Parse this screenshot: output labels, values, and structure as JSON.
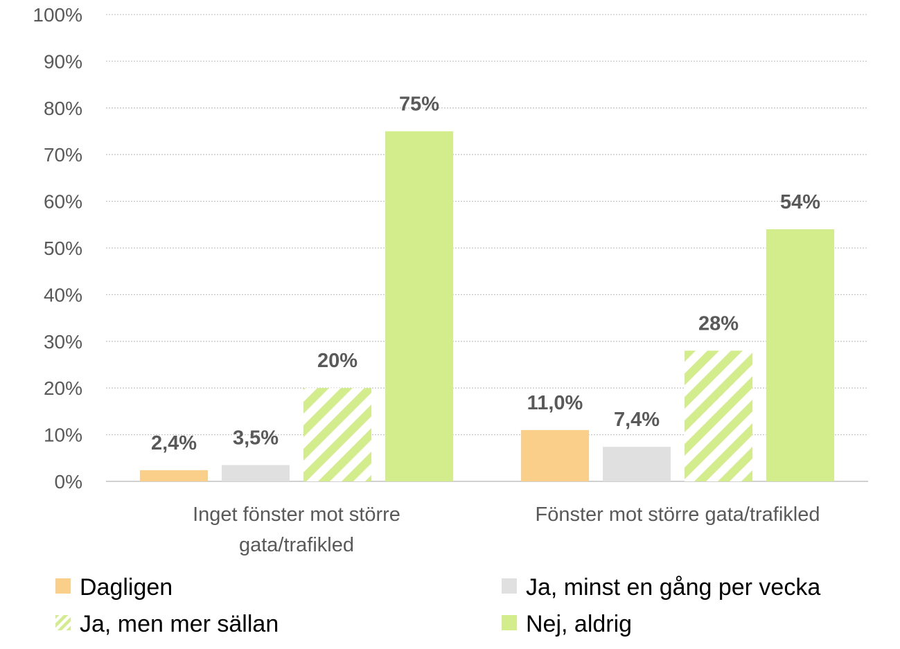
{
  "chart_data": {
    "type": "bar",
    "categories": [
      [
        "Inget fönster mot större",
        "gata/trafikled"
      ],
      [
        "Fönster mot större gata/trafikled"
      ]
    ],
    "series": [
      {
        "name": "Dagligen",
        "color": "#FACF8A",
        "pattern": "solid",
        "values": [
          2.4,
          11.0
        ],
        "labels": [
          "2,4%",
          "11,0%"
        ]
      },
      {
        "name": "Ja, minst en gång per vecka",
        "color": "#E0E0E0",
        "pattern": "solid",
        "values": [
          3.5,
          7.4
        ],
        "labels": [
          "3,5%",
          "7,4%"
        ]
      },
      {
        "name": "Ja, men mer sällan",
        "color": "#D3EC8C",
        "pattern": "diagonal-stripes",
        "values": [
          20,
          28
        ],
        "labels": [
          "20%",
          "28%"
        ]
      },
      {
        "name": "Nej, aldrig",
        "color": "#D3EC8C",
        "pattern": "solid",
        "values": [
          75,
          54
        ],
        "labels": [
          "75%",
          "54%"
        ]
      }
    ],
    "yticks": [
      "0%",
      "10%",
      "20%",
      "30%",
      "40%",
      "50%",
      "60%",
      "70%",
      "80%",
      "90%",
      "100%"
    ],
    "ylim": [
      0,
      100
    ],
    "grid": true,
    "legend_position": "bottom",
    "data_label_color": "#595959",
    "tick_label_color": "#595959",
    "grid_color": "#C8C8C8",
    "axis_color": "#D0D0D0"
  }
}
